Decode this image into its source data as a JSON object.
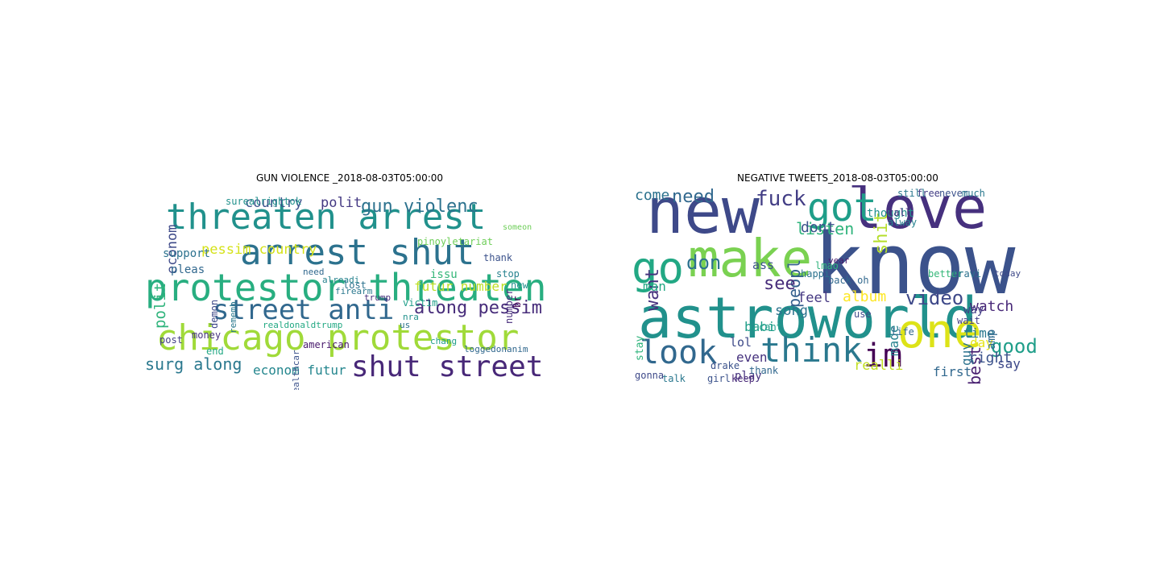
{
  "panels": [
    {
      "id": "gun",
      "title": "GUN VIOLENCE _2018-08-03T05:00:00",
      "words": [
        {
          "t": "threaten arrest",
          "c": "#21918c"
        },
        {
          "t": "arrest shut",
          "c": "#2c728e"
        },
        {
          "t": "protestor threaten",
          "c": "#28ae80"
        },
        {
          "t": "chicago protestor",
          "c": "#a0da39"
        },
        {
          "t": "street anti",
          "c": "#31688e"
        },
        {
          "t": "shut street",
          "c": "#482878"
        },
        {
          "t": "gun violenc",
          "c": "#2c728e"
        },
        {
          "t": "pessim country",
          "c": "#d5e21a"
        },
        {
          "t": "country",
          "c": "#3b528b"
        },
        {
          "t": "polit",
          "c": "#443983"
        },
        {
          "t": "along pessim",
          "c": "#472c7a"
        },
        {
          "t": "surg along",
          "c": "#2a788e"
        },
        {
          "t": "econom futur",
          "c": "#24868e"
        },
        {
          "t": "futur number",
          "c": "#bddf26"
        },
        {
          "t": "econom",
          "c": "#3e4a89"
        },
        {
          "t": "polit",
          "c": "#2fb47c"
        },
        {
          "t": "support",
          "c": "#2c728e"
        },
        {
          "t": "pleas",
          "c": "#31688e"
        },
        {
          "t": "surealrightok",
          "c": "#21918c"
        },
        {
          "t": "victim",
          "c": "#1f9e89"
        },
        {
          "t": "pinoyletariat",
          "c": "#6ece58"
        },
        {
          "t": "money",
          "c": "#46327e"
        },
        {
          "t": "american",
          "c": "#481a6c"
        },
        {
          "t": "issu",
          "c": "#35b779"
        },
        {
          "t": "stop",
          "c": "#26828e"
        },
        {
          "t": "lost",
          "c": "#2c728e"
        },
        {
          "t": "thank",
          "c": "#3b528b"
        },
        {
          "t": "new",
          "c": "#21918c"
        },
        {
          "t": "post",
          "c": "#433e85"
        },
        {
          "t": "end",
          "c": "#22a884"
        },
        {
          "t": "chang",
          "c": "#1f9e89"
        },
        {
          "t": "loggedonanim",
          "c": "#31688e"
        },
        {
          "t": "realdonaldtrump",
          "c": "#23a983"
        },
        {
          "t": "trump",
          "c": "#472f7d"
        },
        {
          "t": "alreadi",
          "c": "#26828e"
        },
        {
          "t": "firearm",
          "c": "#2a788e"
        },
        {
          "t": "need",
          "c": "#31688e"
        },
        {
          "t": "healthcar",
          "c": "#3b528b"
        },
        {
          "t": "demon",
          "c": "#3e4989"
        },
        {
          "t": "number",
          "c": "#472d7b"
        },
        {
          "t": "br",
          "c": "#440154"
        },
        {
          "t": "nra",
          "c": "#21918c"
        },
        {
          "t": "us",
          "c": "#2c728e"
        },
        {
          "t": "rememb",
          "c": "#2a788e"
        },
        {
          "t": "someon",
          "c": "#6ece58"
        }
      ]
    },
    {
      "id": "neg",
      "title": "NEGATIVE TWEETS_2018-08-03T05:00:00",
      "words": [
        {
          "t": "know",
          "c": "#3b528b"
        },
        {
          "t": "astroworld",
          "c": "#21918c"
        },
        {
          "t": "new",
          "c": "#3e4989"
        },
        {
          "t": "love",
          "c": "#46307e"
        },
        {
          "t": "make",
          "c": "#7ad151"
        },
        {
          "t": "go",
          "c": "#22a884"
        },
        {
          "t": "got",
          "c": "#1f9e89"
        },
        {
          "t": "one",
          "c": "#dde318"
        },
        {
          "t": "look",
          "c": "#31688e"
        },
        {
          "t": "think",
          "c": "#2a788e"
        },
        {
          "t": "im",
          "c": "#440154"
        },
        {
          "t": "fuck",
          "c": "#433e85"
        },
        {
          "t": "need",
          "c": "#31688e"
        },
        {
          "t": "come",
          "c": "#2c728e"
        },
        {
          "t": "don",
          "c": "#2c728e"
        },
        {
          "t": "want",
          "c": "#46327e"
        },
        {
          "t": "peopl",
          "c": "#35608d"
        },
        {
          "t": "listen",
          "c": "#2fb47c"
        },
        {
          "t": "dont",
          "c": "#3b528b"
        },
        {
          "t": "shit",
          "c": "#b5de2b"
        },
        {
          "t": "see",
          "c": "#472c7a"
        },
        {
          "t": "video",
          "c": "#3e4989"
        },
        {
          "t": "album",
          "c": "#fde725"
        },
        {
          "t": "watch",
          "c": "#482878"
        },
        {
          "t": "good",
          "c": "#1f9e89"
        },
        {
          "t": "feel",
          "c": "#453882"
        },
        {
          "t": "song",
          "c": "#2c728e"
        },
        {
          "t": "time",
          "c": "#2a788e"
        },
        {
          "t": "best",
          "c": "#481f70"
        },
        {
          "t": "realli",
          "c": "#c2df23"
        },
        {
          "t": "right",
          "c": "#3b528b"
        },
        {
          "t": "say",
          "c": "#3e4989"
        },
        {
          "t": "first",
          "c": "#31688e"
        },
        {
          "t": "even",
          "c": "#46327e"
        },
        {
          "t": "man",
          "c": "#22a884"
        },
        {
          "t": "lol",
          "c": "#3e4a89"
        },
        {
          "t": "made",
          "c": "#26828e"
        },
        {
          "t": "babi",
          "c": "#1f9e89"
        },
        {
          "t": "ass",
          "c": "#3b528b"
        },
        {
          "t": "guy",
          "c": "#2c728e"
        },
        {
          "t": "day",
          "c": "#e5e419"
        },
        {
          "t": "way",
          "c": "#433e85"
        },
        {
          "t": "amp",
          "c": "#31688e"
        },
        {
          "t": "play",
          "c": "#46327e"
        },
        {
          "t": "talk",
          "c": "#2a788e"
        },
        {
          "t": "girl",
          "c": "#3b528b"
        },
        {
          "t": "keep",
          "c": "#482878"
        },
        {
          "t": "gonna",
          "c": "#3e4989"
        },
        {
          "t": "thought",
          "c": "#21918c"
        },
        {
          "t": "free",
          "c": "#433e85"
        },
        {
          "t": "never",
          "c": "#3b528b"
        },
        {
          "t": "much",
          "c": "#2a788e"
        },
        {
          "t": "call",
          "c": "#46327e"
        },
        {
          "t": "back oh",
          "c": "#31688e"
        },
        {
          "t": "better",
          "c": "#35b779"
        },
        {
          "t": "travi",
          "c": "#2c728e"
        },
        {
          "t": "use",
          "c": "#3e4a89"
        },
        {
          "t": "year",
          "c": "#481a6c"
        },
        {
          "t": "happi",
          "c": "#2c728e"
        },
        {
          "t": "lmao",
          "c": "#2fb47c"
        },
        {
          "t": "thank",
          "c": "#31688e"
        },
        {
          "t": "cant",
          "c": "#1f9e89"
        },
        {
          "t": "stay",
          "c": "#2fb47c"
        },
        {
          "t": "alway",
          "c": "#26828e"
        },
        {
          "t": "still",
          "c": "#2a788e"
        },
        {
          "t": "drake",
          "c": "#3b528b"
        },
        {
          "t": "life",
          "c": "#31688e"
        },
        {
          "t": "wait",
          "c": "#433e85"
        },
        {
          "t": "today",
          "c": "#3e4989"
        }
      ]
    }
  ]
}
